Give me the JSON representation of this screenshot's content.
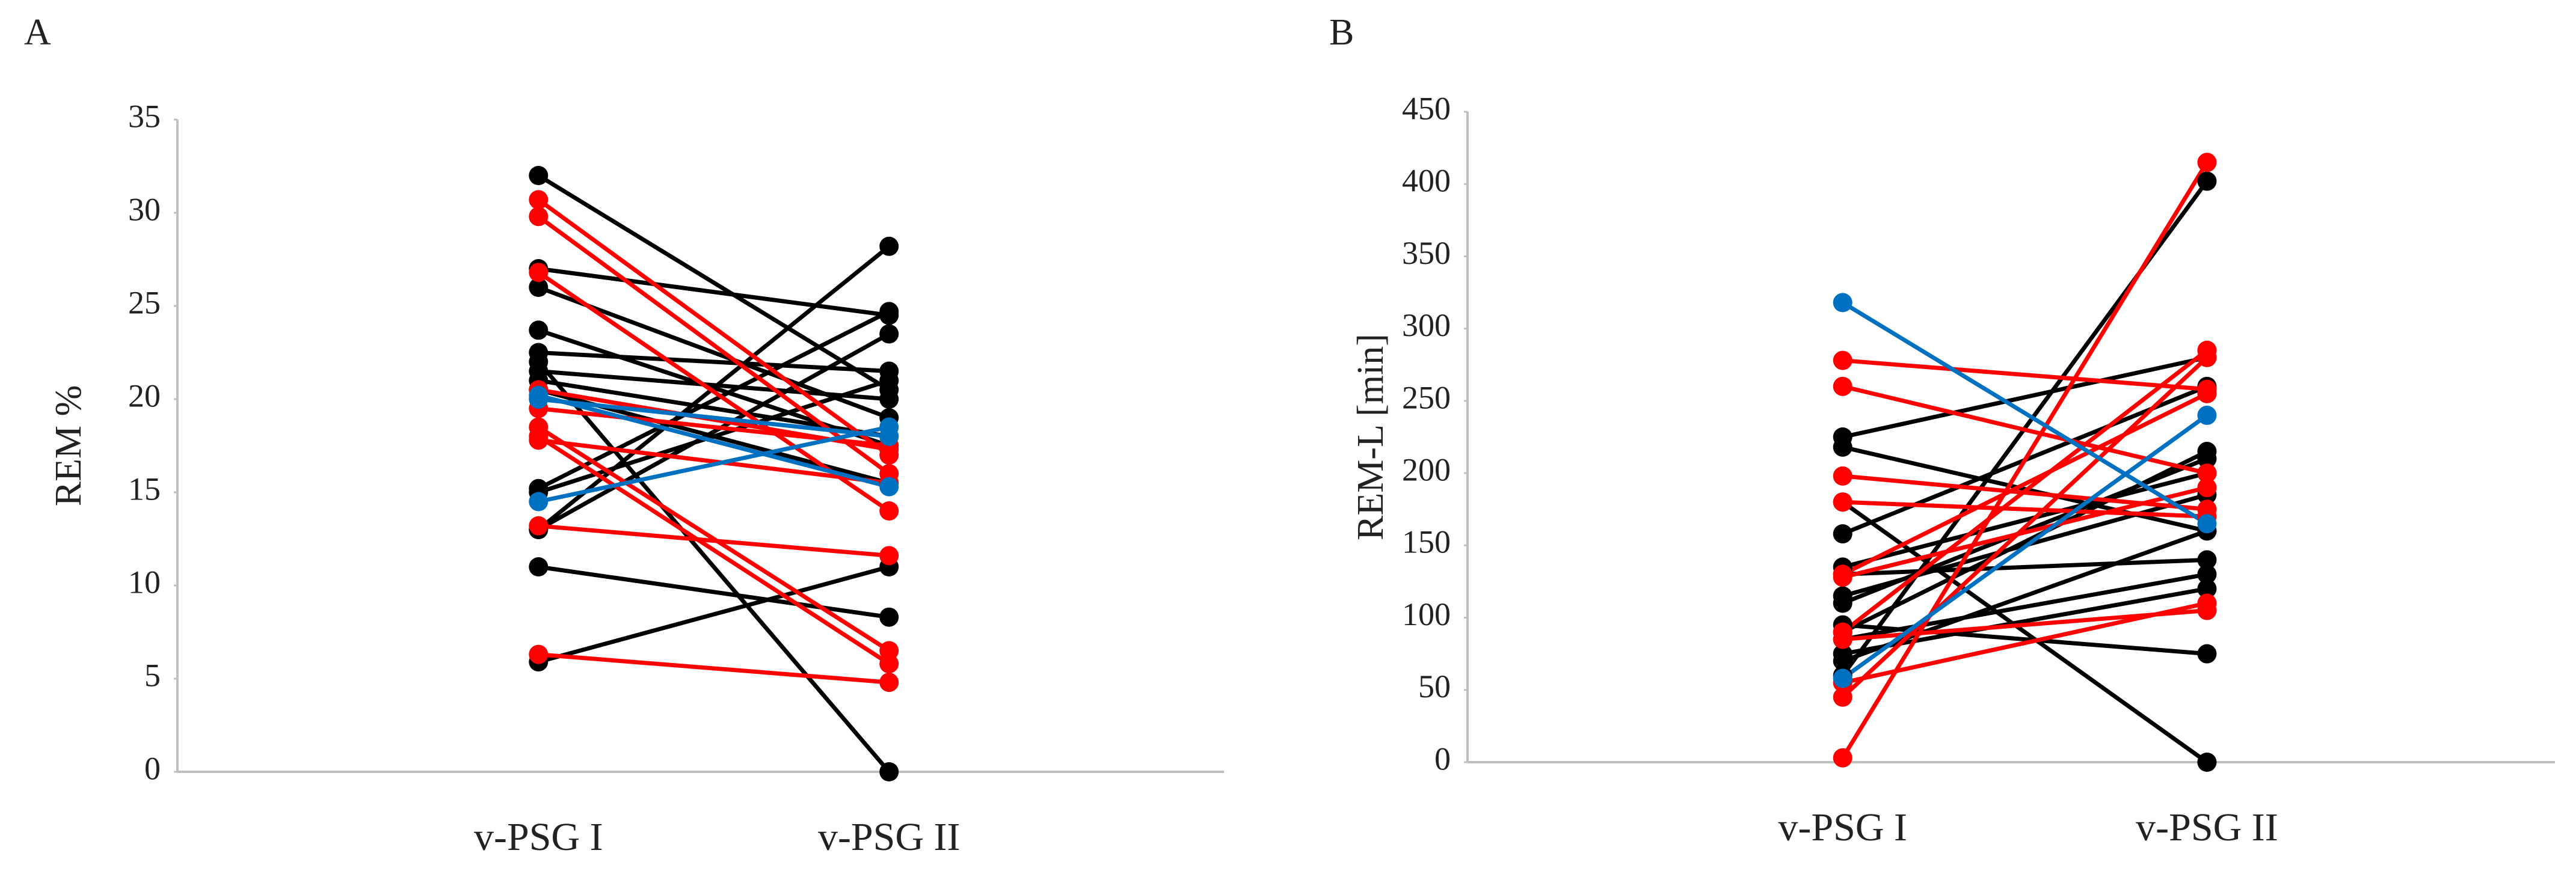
{
  "chart_data": [
    {
      "type": "line",
      "panel_label": "A",
      "y_label": "REM %",
      "categories": [
        "v-PSG I",
        "v-PSG II"
      ],
      "ylim": [
        0,
        35
      ],
      "yticks": [
        0,
        5,
        10,
        15,
        20,
        25,
        30,
        35
      ],
      "grid": false,
      "series": [
        {
          "color": "#000000",
          "values": [
            32,
            20.5
          ]
        },
        {
          "color": "#000000",
          "values": [
            27,
            24.5
          ]
        },
        {
          "color": "#000000",
          "values": [
            26,
            19
          ]
        },
        {
          "color": "#000000",
          "values": [
            23.7,
            17.5
          ]
        },
        {
          "color": "#000000",
          "values": [
            22.5,
            21.5
          ]
        },
        {
          "color": "#000000",
          "values": [
            22,
            0
          ]
        },
        {
          "color": "#000000",
          "values": [
            21.5,
            20
          ]
        },
        {
          "color": "#000000",
          "values": [
            21,
            18
          ]
        },
        {
          "color": "#000000",
          "values": [
            20.5,
            15.5
          ]
        },
        {
          "color": "#000000",
          "values": [
            15.2,
            24.7
          ]
        },
        {
          "color": "#000000",
          "values": [
            15,
            21
          ]
        },
        {
          "color": "#000000",
          "values": [
            13,
            23.5
          ]
        },
        {
          "color": "#000000",
          "values": [
            13,
            28.2
          ]
        },
        {
          "color": "#000000",
          "values": [
            11,
            8.3
          ]
        },
        {
          "color": "#000000",
          "values": [
            5.9,
            11
          ]
        },
        {
          "color": "#ff0000",
          "values": [
            30.7,
            17
          ]
        },
        {
          "color": "#ff0000",
          "values": [
            29.8,
            16
          ]
        },
        {
          "color": "#ff0000",
          "values": [
            26.8,
            14
          ]
        },
        {
          "color": "#ff0000",
          "values": [
            20.5,
            17.3
          ]
        },
        {
          "color": "#ff0000",
          "values": [
            19.5,
            17.5
          ]
        },
        {
          "color": "#ff0000",
          "values": [
            18.5,
            6.5
          ]
        },
        {
          "color": "#ff0000",
          "values": [
            18,
            5.8
          ]
        },
        {
          "color": "#ff0000",
          "values": [
            17.8,
            15.5
          ]
        },
        {
          "color": "#ff0000",
          "values": [
            13.2,
            11.6
          ]
        },
        {
          "color": "#ff0000",
          "values": [
            6.3,
            4.8
          ]
        },
        {
          "color": "#0070c0",
          "values": [
            20.2,
            15.3
          ]
        },
        {
          "color": "#0070c0",
          "values": [
            14.5,
            18.5
          ]
        },
        {
          "color": "#0070c0",
          "values": [
            20,
            18
          ]
        }
      ]
    },
    {
      "type": "line",
      "panel_label": "B",
      "y_label": "REM-L [min]",
      "categories": [
        "v-PSG I",
        "v-PSG II"
      ],
      "ylim": [
        0,
        450
      ],
      "yticks": [
        0,
        50,
        100,
        150,
        200,
        250,
        300,
        350,
        400,
        450
      ],
      "grid": false,
      "series": [
        {
          "color": "#000000",
          "values": [
            225,
            280
          ]
        },
        {
          "color": "#000000",
          "values": [
            218,
            160
          ]
        },
        {
          "color": "#000000",
          "values": [
            180,
            0
          ]
        },
        {
          "color": "#000000",
          "values": [
            158,
            260
          ]
        },
        {
          "color": "#000000",
          "values": [
            135,
            200
          ]
        },
        {
          "color": "#000000",
          "values": [
            130,
            140
          ]
        },
        {
          "color": "#000000",
          "values": [
            115,
            185
          ]
        },
        {
          "color": "#000000",
          "values": [
            110,
            210
          ]
        },
        {
          "color": "#000000",
          "values": [
            95,
            75
          ]
        },
        {
          "color": "#000000",
          "values": [
            85,
            130
          ]
        },
        {
          "color": "#000000",
          "values": [
            75,
            120
          ]
        },
        {
          "color": "#000000",
          "values": [
            70,
            160
          ]
        },
        {
          "color": "#000000",
          "values": [
            60,
            402
          ]
        },
        {
          "color": "#000000",
          "values": [
            90,
            215
          ]
        },
        {
          "color": "#ff0000",
          "values": [
            278,
            258
          ]
        },
        {
          "color": "#ff0000",
          "values": [
            260,
            200
          ]
        },
        {
          "color": "#ff0000",
          "values": [
            198,
            175
          ]
        },
        {
          "color": "#ff0000",
          "values": [
            180,
            170
          ]
        },
        {
          "color": "#ff0000",
          "values": [
            130,
            255
          ]
        },
        {
          "color": "#ff0000",
          "values": [
            128,
            190
          ]
        },
        {
          "color": "#ff0000",
          "values": [
            90,
            285
          ]
        },
        {
          "color": "#ff0000",
          "values": [
            85,
            105
          ]
        },
        {
          "color": "#ff0000",
          "values": [
            45,
            280
          ]
        },
        {
          "color": "#ff0000",
          "values": [
            3,
            415
          ]
        },
        {
          "color": "#ff0000",
          "values": [
            55,
            110
          ]
        },
        {
          "color": "#0070c0",
          "values": [
            318,
            165
          ]
        },
        {
          "color": "#0070c0",
          "values": [
            58,
            240
          ]
        }
      ]
    }
  ]
}
